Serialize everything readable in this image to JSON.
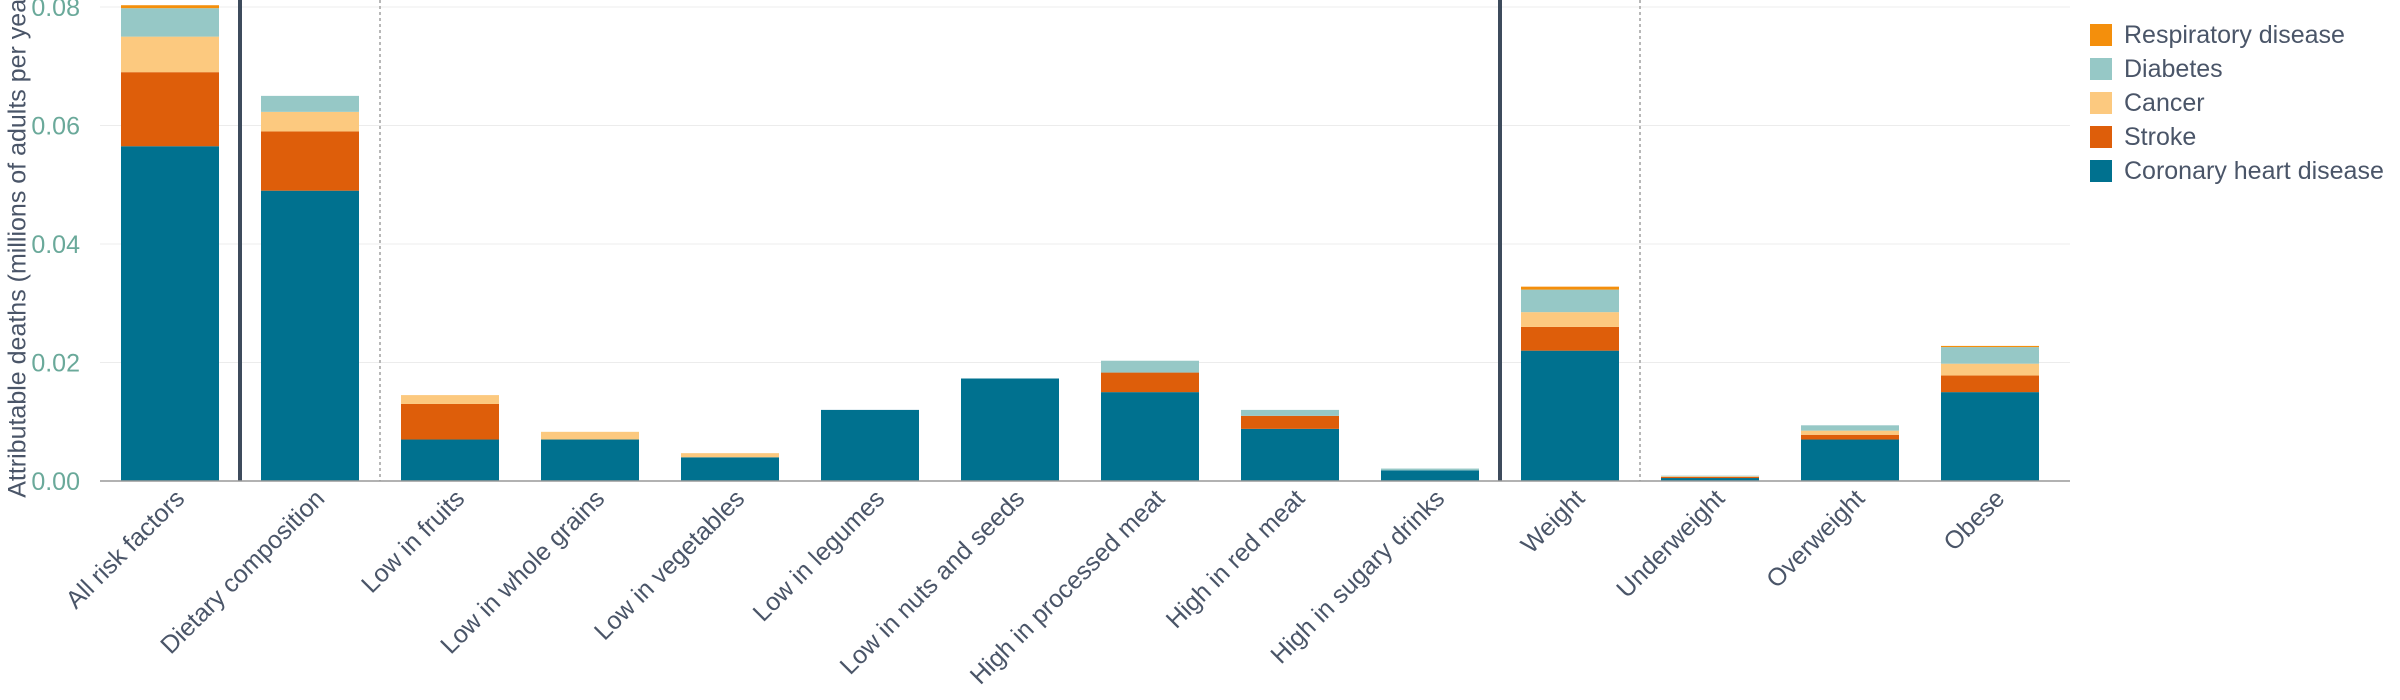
{
  "chart_data": {
    "type": "bar",
    "stacked": true,
    "title": "",
    "xlabel": "",
    "ylabel": "Attributable deaths (millions of adults per year)",
    "ylim": [
      0,
      0.08
    ],
    "yticks": [
      "0.00",
      "0.02",
      "0.04",
      "0.06",
      "0.08"
    ],
    "grid": true,
    "legend_position": "top-right",
    "categories": [
      "All risk factors",
      "Dietary composition",
      "Low in fruits",
      "Low in whole grains",
      "Low in vegetables",
      "Low in legumes",
      "Low in nuts and seeds",
      "High in processed meat",
      "High in red meat",
      "High in sugary drinks",
      "Weight",
      "Underweight",
      "Overweight",
      "Obese"
    ],
    "group_separators_after": [
      0,
      9
    ],
    "subgroup_separators_after": [
      1,
      10
    ],
    "series": [
      {
        "name": "Coronary heart disease",
        "color": "#00718f",
        "values": [
          0.0565,
          0.049,
          0.007,
          0.007,
          0.004,
          0.012,
          0.0173,
          0.015,
          0.0088,
          0.0018,
          0.022,
          0.0005,
          0.007,
          0.015
        ]
      },
      {
        "name": "Stroke",
        "color": "#de5e0a",
        "values": [
          0.0125,
          0.01,
          0.006,
          0.0,
          0.0,
          0.0,
          0.0,
          0.0033,
          0.0022,
          0.0,
          0.004,
          0.0002,
          0.0008,
          0.0028
        ]
      },
      {
        "name": "Cancer",
        "color": "#fcc97f",
        "values": [
          0.006,
          0.0033,
          0.0015,
          0.0013,
          0.0007,
          0.0,
          0.0,
          0.0,
          0.0,
          0.0,
          0.0025,
          0.0001,
          0.0007,
          0.002
        ]
      },
      {
        "name": "Diabetes",
        "color": "#96c8c6",
        "values": [
          0.0048,
          0.0027,
          0.0,
          0.0,
          0.0,
          0.0,
          0.0,
          0.002,
          0.001,
          0.0003,
          0.0038,
          0.0001,
          0.0009,
          0.0028
        ]
      },
      {
        "name": "Respiratory disease",
        "color": "#f48f0c",
        "values": [
          0.0005,
          0.0,
          0.0,
          0.0,
          0.0,
          0.0,
          0.0,
          0.0,
          0.0,
          0.0,
          0.0005,
          0.0,
          0.0,
          0.0002
        ]
      }
    ],
    "legend_order": [
      "Respiratory disease",
      "Diabetes",
      "Cancer",
      "Stroke",
      "Coronary heart disease"
    ]
  }
}
